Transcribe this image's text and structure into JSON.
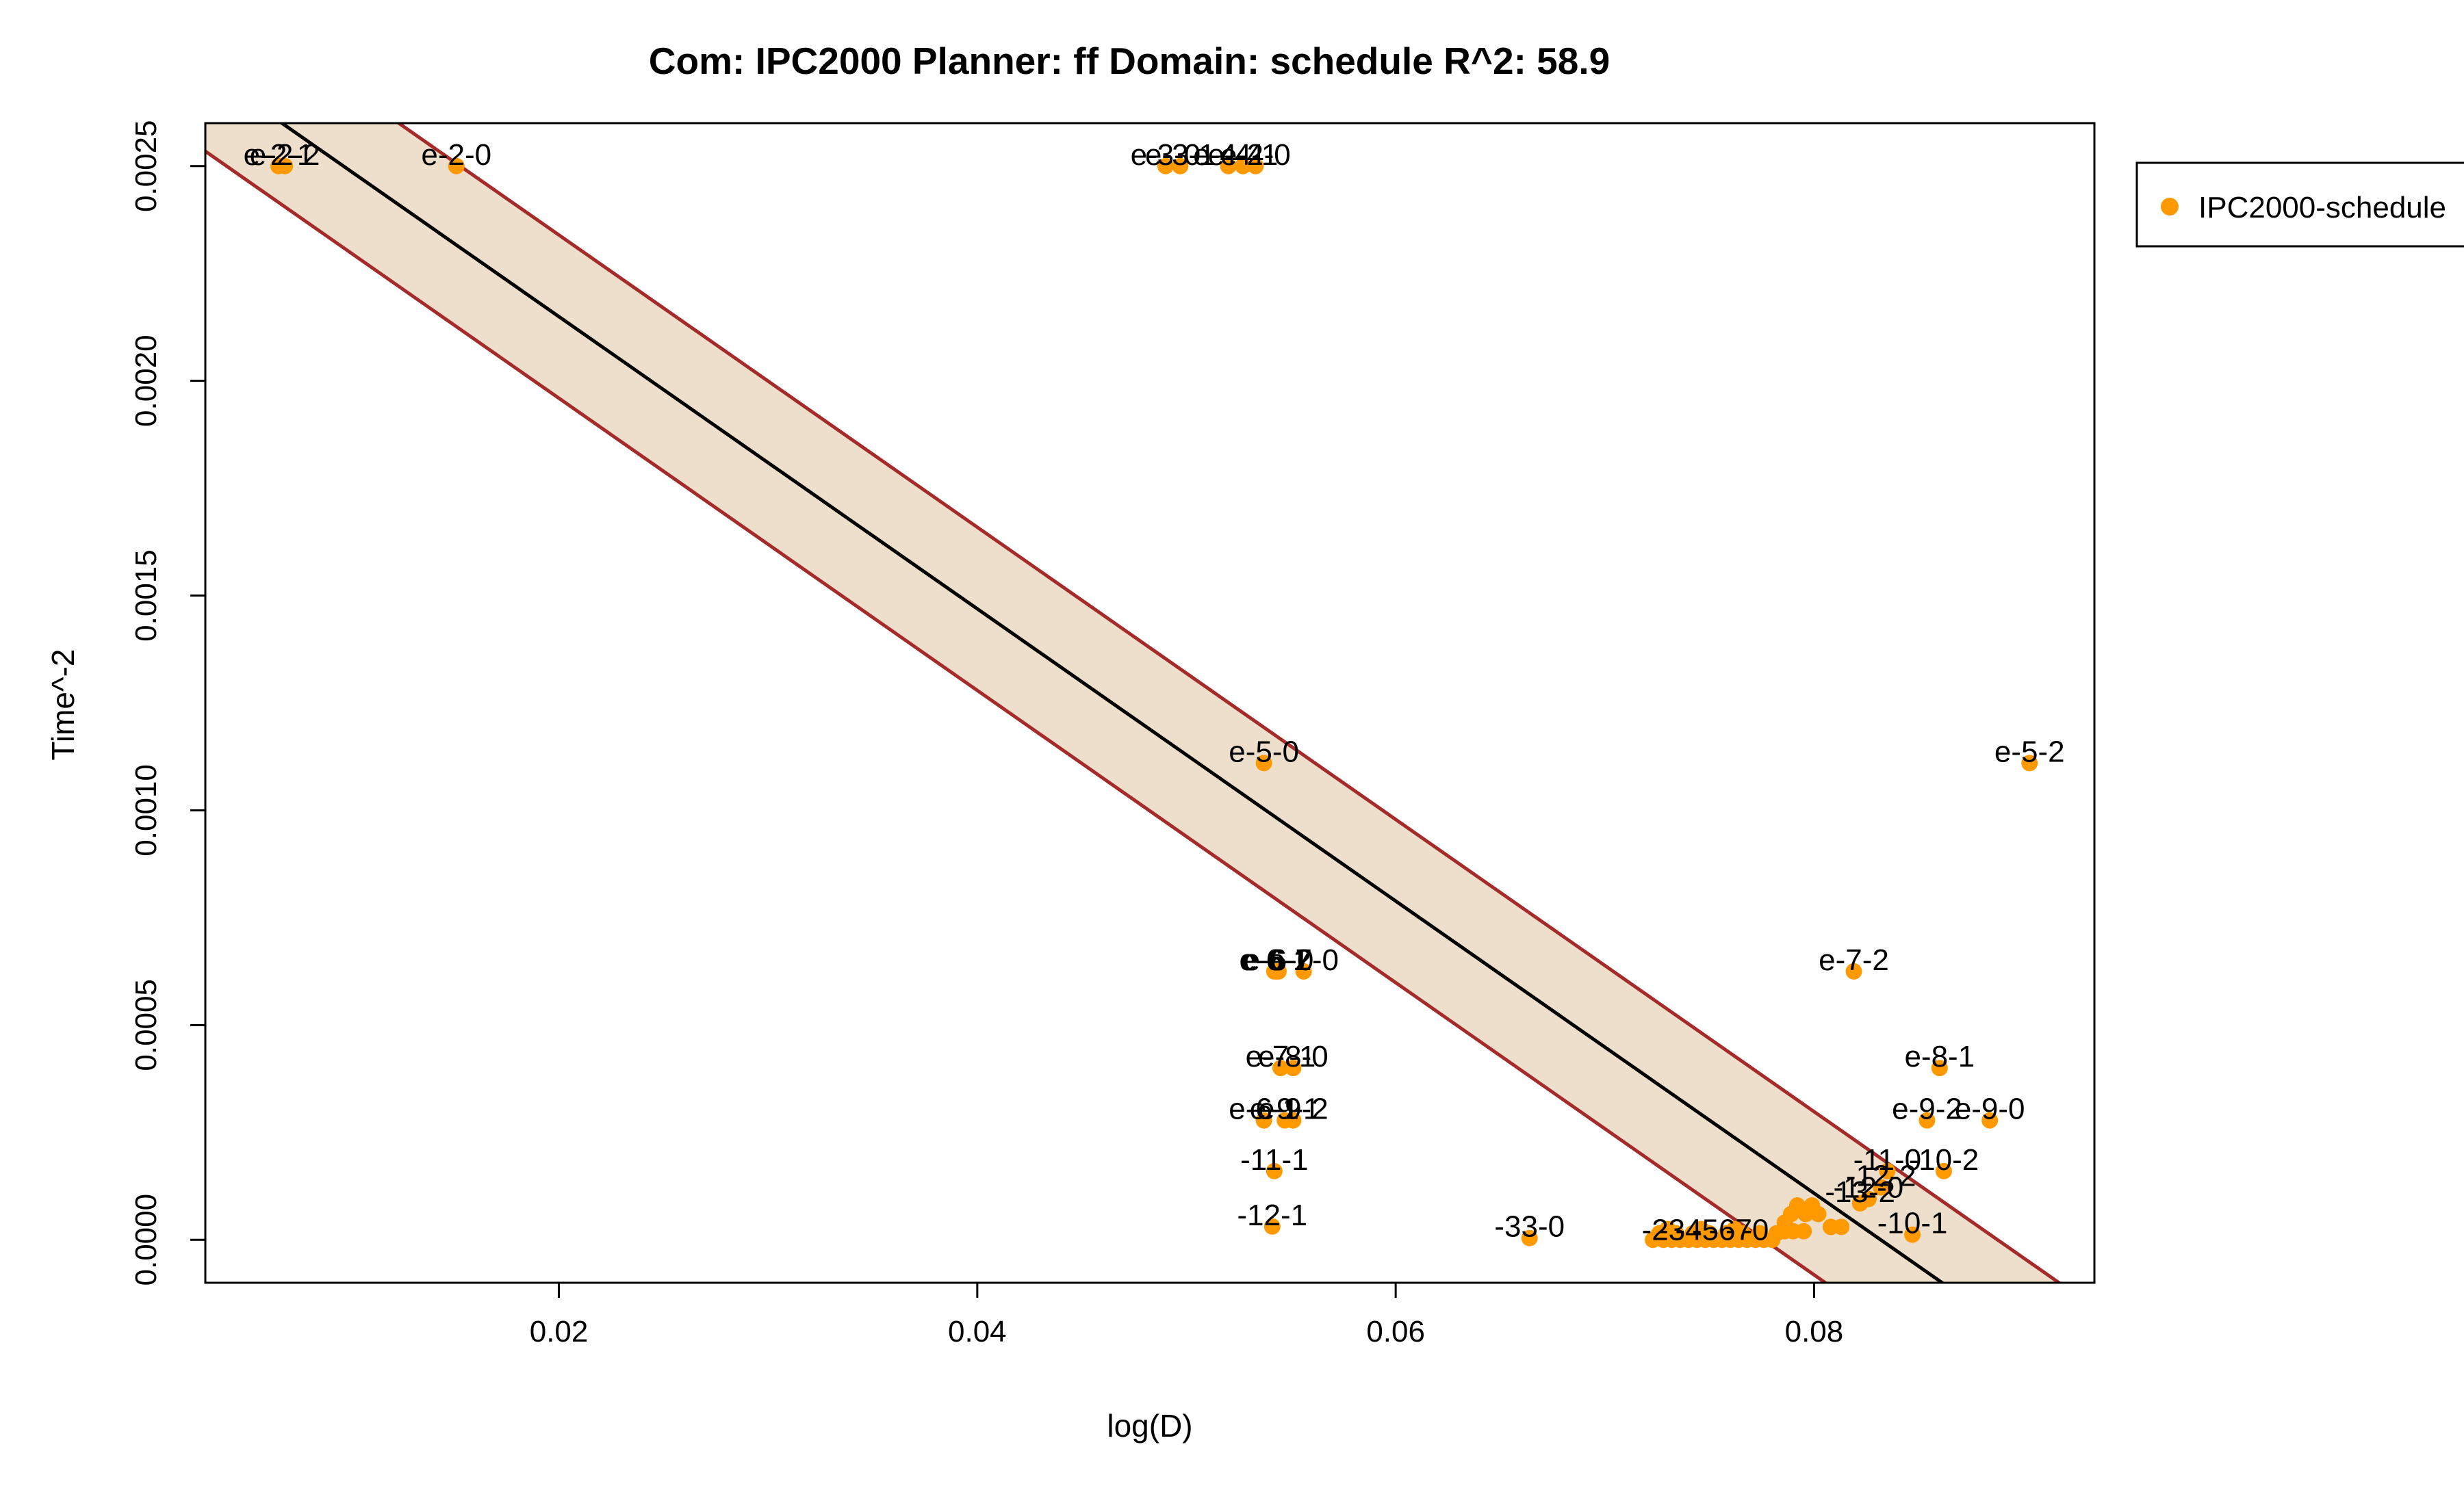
{
  "chart_data": {
    "type": "scatter",
    "title": "Com: IPC2000 Planner: ff Domain: schedule R^2: 58.9",
    "xlabel": "log(D)",
    "ylabel": "Time^-2",
    "xlim": [
      0.0031,
      0.0934
    ],
    "ylim": [
      -0.0001,
      0.0026
    ],
    "xticks": [
      0.02,
      0.04,
      0.06,
      0.08
    ],
    "xtick_labels": [
      "0.02",
      "0.04",
      "0.06",
      "0.08"
    ],
    "yticks": [
      0.0,
      0.0005,
      0.001,
      0.0015,
      0.002,
      0.0025
    ],
    "ytick_labels": [
      "0.0000",
      "0.0005",
      "0.0010",
      "0.0015",
      "0.0020",
      "0.0025"
    ],
    "grid": false,
    "legend": {
      "position": "outside-right-top",
      "entries": [
        {
          "label": "IPC2000-schedule",
          "color": "#FF9900"
        }
      ]
    },
    "colors": {
      "points": "#FF9900",
      "fit_line": "#000000",
      "band_fill": "#EEDFCC",
      "band_edge": "#A52A2A"
    },
    "fit_line": {
      "intercept": 0.00283,
      "slope": -0.03402
    },
    "band": {
      "halfwidth": 0.00019
    },
    "labeled_points": [
      {
        "label": "e-2-1",
        "x": 0.0066,
        "y": 0.0025
      },
      {
        "label": "e-2-2",
        "x": 0.0069,
        "y": 0.0025
      },
      {
        "label": "e-2-0",
        "x": 0.0151,
        "y": 0.0025
      },
      {
        "label": "e-3-0",
        "x": 0.049,
        "y": 0.0025
      },
      {
        "label": "e-3-1",
        "x": 0.0497,
        "y": 0.0025
      },
      {
        "label": "e-4-2",
        "x": 0.052,
        "y": 0.0025
      },
      {
        "label": "e-4-1",
        "x": 0.0527,
        "y": 0.0025
      },
      {
        "label": "e-4-0",
        "x": 0.0533,
        "y": 0.0025
      },
      {
        "label": "e-5-0",
        "x": 0.0537,
        "y": 0.00111
      },
      {
        "label": "e-5-2",
        "x": 0.0903,
        "y": 0.00111
      },
      {
        "label": "e-6-1",
        "x": 0.0542,
        "y": 0.000625
      },
      {
        "label": "e-6-2",
        "x": 0.0543,
        "y": 0.000625
      },
      {
        "label": "e-6-0",
        "x": 0.0544,
        "y": 0.000625
      },
      {
        "label": "e-7-0",
        "x": 0.0556,
        "y": 0.000625
      },
      {
        "label": "e-7-2",
        "x": 0.0819,
        "y": 0.000625
      },
      {
        "label": "e-7-1",
        "x": 0.0545,
        "y": 0.0004
      },
      {
        "label": "e-8-0",
        "x": 0.0551,
        "y": 0.0004
      },
      {
        "label": "e-8-1",
        "x": 0.086,
        "y": 0.0004
      },
      {
        "label": "e-6-1",
        "x": 0.0537,
        "y": 0.000278
      },
      {
        "label": "e-9-1",
        "x": 0.0547,
        "y": 0.000278
      },
      {
        "label": "e-9-2",
        "x": 0.0551,
        "y": 0.000278
      },
      {
        "label": "e-9-2",
        "x": 0.0854,
        "y": 0.000278
      },
      {
        "label": "e-9-0",
        "x": 0.0884,
        "y": 0.000278
      },
      {
        "label": "-11-1",
        "x": 0.0542,
        "y": 0.00016
      },
      {
        "label": "-11-0",
        "x": 0.0835,
        "y": 0.00016
      },
      {
        "label": "-10-2",
        "x": 0.0862,
        "y": 0.00016
      },
      {
        "label": "-12-2",
        "x": 0.0832,
        "y": 0.000122
      },
      {
        "label": "-12-0",
        "x": 0.0826,
        "y": 9.5e-05
      },
      {
        "label": "-13-2",
        "x": 0.0822,
        "y": 8.5e-05
      },
      {
        "label": "-12-1",
        "x": 0.0541,
        "y": 3.1e-05
      },
      {
        "label": "-10-1",
        "x": 0.0847,
        "y": 1.2e-05
      },
      {
        "label": "-33-0",
        "x": 0.0664,
        "y": 4e-06
      }
    ],
    "clustered_points": [
      {
        "x": 0.0723,
        "y": 0.0
      },
      {
        "x": 0.0728,
        "y": 0.0
      },
      {
        "x": 0.0732,
        "y": 0.0
      },
      {
        "x": 0.0736,
        "y": 0.0
      },
      {
        "x": 0.074,
        "y": 0.0
      },
      {
        "x": 0.0744,
        "y": 0.0
      },
      {
        "x": 0.0748,
        "y": 0.0
      },
      {
        "x": 0.0752,
        "y": 0.0
      },
      {
        "x": 0.0756,
        "y": 0.0
      },
      {
        "x": 0.076,
        "y": 0.0
      },
      {
        "x": 0.0764,
        "y": 0.0
      },
      {
        "x": 0.0768,
        "y": 0.0
      },
      {
        "x": 0.0772,
        "y": 0.0
      },
      {
        "x": 0.0776,
        "y": 0.0
      },
      {
        "x": 0.078,
        "y": 0.0
      },
      {
        "x": 0.0726,
        "y": 1.5e-05
      },
      {
        "x": 0.0734,
        "y": 1.5e-05
      },
      {
        "x": 0.0742,
        "y": 1.5e-05
      },
      {
        "x": 0.075,
        "y": 1.5e-05
      },
      {
        "x": 0.0758,
        "y": 1.5e-05
      },
      {
        "x": 0.0766,
        "y": 1.5e-05
      },
      {
        "x": 0.0774,
        "y": 1.5e-05
      },
      {
        "x": 0.0782,
        "y": 1.5e-05
      },
      {
        "x": 0.073,
        "y": 2.5e-05
      },
      {
        "x": 0.0746,
        "y": 2.5e-05
      },
      {
        "x": 0.0762,
        "y": 2.5e-05
      },
      {
        "x": 0.0786,
        "y": 2e-05
      },
      {
        "x": 0.079,
        "y": 2e-05
      },
      {
        "x": 0.0795,
        "y": 2e-05
      },
      {
        "x": 0.0789,
        "y": 6e-05
      },
      {
        "x": 0.0796,
        "y": 6e-05
      },
      {
        "x": 0.0802,
        "y": 6e-05
      },
      {
        "x": 0.0792,
        "y": 8e-05
      },
      {
        "x": 0.0799,
        "y": 8e-05
      },
      {
        "x": 0.0808,
        "y": 3e-05
      },
      {
        "x": 0.0813,
        "y": 3e-05
      },
      {
        "x": 0.0786,
        "y": 4e-05
      }
    ],
    "cluster_labels": [
      {
        "text": "-2",
        "x": 0.0724,
        "y": 2.2e-05
      },
      {
        "text": "-3",
        "x": 0.0732,
        "y": 2.2e-05
      },
      {
        "text": "-4",
        "x": 0.074,
        "y": 2.2e-05
      },
      {
        "text": "-5",
        "x": 0.0748,
        "y": 2.2e-05
      },
      {
        "text": "-6",
        "x": 0.0756,
        "y": 2.2e-05
      },
      {
        "text": "-7",
        "x": 0.0764,
        "y": 2.2e-05
      },
      {
        "text": "-0",
        "x": 0.0772,
        "y": 2.2e-05
      }
    ]
  }
}
